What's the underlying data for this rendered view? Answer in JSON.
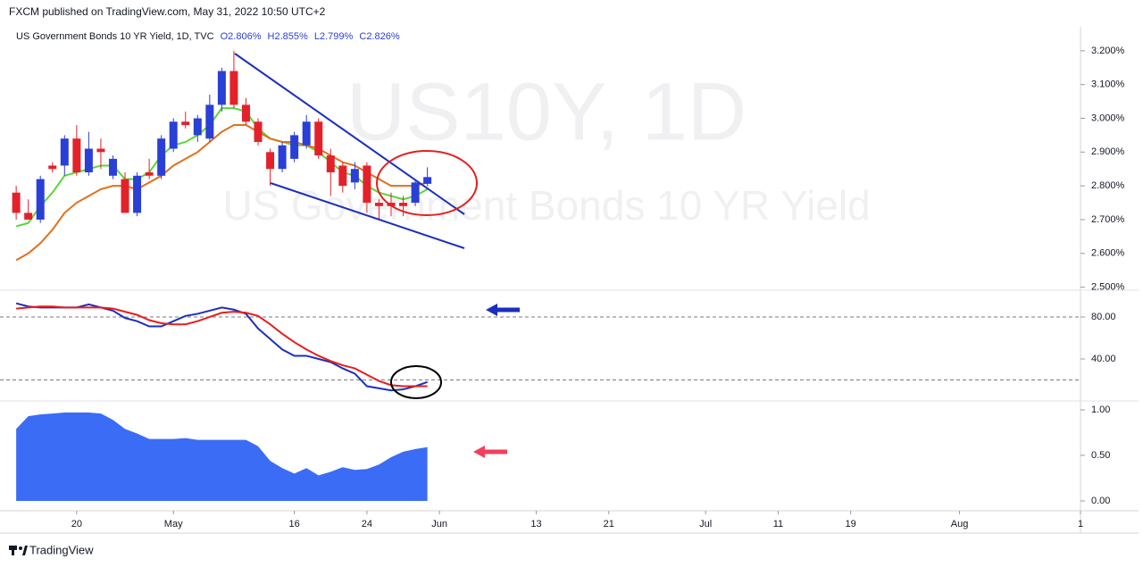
{
  "header": {
    "publisher": "FXCM published on TradingView.com, May 31, 2022 10:50 UTC+2"
  },
  "footer": {
    "brand": "TradingView"
  },
  "chart_data": [
    {
      "type": "candlestick",
      "legend_title": "US Government Bonds 10 YR Yield, 1D, TVC",
      "legend_values": [
        "O2.806%",
        "H2.855%",
        "L2.799%",
        "C2.826%"
      ],
      "watermark": "US10Y, 1D",
      "watermark_subtitle": "US Government Bonds 10 YR Yield",
      "up_color": "#2a3fd6",
      "down_color": "#e4212b",
      "ylim": [
        2.491,
        3.271
      ],
      "yticks": [
        {
          "value": 2.5,
          "label": "2.500%"
        },
        {
          "value": 2.6,
          "label": "2.600%"
        },
        {
          "value": 2.7,
          "label": "2.700%"
        },
        {
          "value": 2.8,
          "label": "2.800%"
        },
        {
          "value": 2.9,
          "label": "2.900%"
        },
        {
          "value": 3.0,
          "label": "3.000%"
        },
        {
          "value": 3.1,
          "label": "3.100%"
        },
        {
          "value": 3.2,
          "label": "3.200%"
        }
      ],
      "open": [
        2.78,
        2.72,
        2.7,
        2.86,
        2.86,
        2.94,
        2.84,
        2.91,
        2.83,
        2.82,
        2.72,
        2.84,
        2.83,
        2.91,
        2.99,
        2.95,
        2.94,
        3.04,
        3.14,
        3.04,
        2.99,
        2.9,
        2.85,
        2.88,
        2.92,
        2.99,
        2.89,
        2.86,
        2.81,
        2.86,
        2.75,
        2.75,
        2.75,
        2.75,
        2.806
      ],
      "high": [
        2.8,
        2.76,
        2.83,
        2.87,
        2.95,
        2.98,
        2.96,
        2.94,
        2.89,
        2.84,
        2.84,
        2.88,
        2.95,
        3.0,
        3.02,
        3.01,
        3.07,
        3.15,
        3.2,
        3.06,
        3.0,
        2.91,
        2.93,
        2.96,
        3.01,
        3.0,
        2.91,
        2.87,
        2.87,
        2.87,
        2.76,
        2.78,
        2.77,
        2.82,
        2.855
      ],
      "low": [
        2.7,
        2.7,
        2.69,
        2.84,
        2.83,
        2.83,
        2.83,
        2.85,
        2.82,
        2.72,
        2.71,
        2.82,
        2.82,
        2.9,
        2.97,
        2.93,
        2.93,
        3.02,
        3.03,
        2.98,
        2.92,
        2.8,
        2.84,
        2.87,
        2.91,
        2.88,
        2.77,
        2.78,
        2.79,
        2.72,
        2.7,
        2.71,
        2.71,
        2.74,
        2.799
      ],
      "close": [
        2.72,
        2.7,
        2.82,
        2.85,
        2.94,
        2.84,
        2.91,
        2.9,
        2.88,
        2.72,
        2.83,
        2.83,
        2.94,
        2.99,
        2.98,
        3.0,
        3.04,
        3.14,
        3.04,
        2.99,
        2.93,
        2.85,
        2.92,
        2.95,
        2.99,
        2.89,
        2.84,
        2.8,
        2.85,
        2.75,
        2.74,
        2.74,
        2.74,
        2.81,
        2.826
      ],
      "series": [
        {
          "color": "#5cd63c",
          "values": [
            2.68,
            2.69,
            2.74,
            2.78,
            2.83,
            2.84,
            2.85,
            2.86,
            2.86,
            2.82,
            2.82,
            2.84,
            2.89,
            2.92,
            2.93,
            2.95,
            2.98,
            3.03,
            3.03,
            3.02,
            2.97,
            2.94,
            2.93,
            2.92,
            2.92,
            2.9,
            2.87,
            2.84,
            2.83,
            2.8,
            2.78,
            2.77,
            2.76,
            2.77,
            2.79
          ]
        },
        {
          "color": "#e0701d",
          "values": [
            2.58,
            2.6,
            2.63,
            2.67,
            2.72,
            2.75,
            2.77,
            2.79,
            2.8,
            2.8,
            2.79,
            2.81,
            2.83,
            2.86,
            2.88,
            2.9,
            2.93,
            2.96,
            2.98,
            2.98,
            2.96,
            2.94,
            2.93,
            2.93,
            2.92,
            2.91,
            2.89,
            2.87,
            2.86,
            2.84,
            2.82,
            2.8,
            2.8,
            2.8,
            2.81
          ]
        }
      ]
    },
    {
      "type": "line",
      "ylim": [
        0,
        105.5
      ],
      "yticks": [
        {
          "value": 40,
          "label": "40.00"
        },
        {
          "value": 80,
          "label": "80.00"
        }
      ],
      "bands": [
        20,
        80
      ],
      "series": [
        {
          "color": "#1b2fbf",
          "values": [
            93,
            90,
            89,
            89,
            89,
            89,
            92,
            89,
            86,
            79,
            76,
            71,
            71,
            76,
            81,
            83,
            86,
            89,
            87,
            83,
            69,
            59,
            49,
            43,
            43,
            40,
            37,
            31,
            26,
            14,
            12,
            10,
            11,
            14,
            18
          ]
        },
        {
          "color": "#e81d1d",
          "values": [
            88,
            89,
            90,
            90,
            89,
            89,
            89,
            89,
            88,
            85,
            82,
            77,
            74,
            73,
            73,
            76,
            80,
            84,
            85,
            84,
            81,
            73,
            64,
            56,
            49,
            43,
            38,
            34,
            31,
            25,
            19,
            15,
            14,
            14,
            14
          ]
        }
      ]
    },
    {
      "type": "area",
      "ylim": [
        -0.108,
        1.098
      ],
      "yticks": [
        {
          "value": 0,
          "label": "0.00"
        },
        {
          "value": 0.5,
          "label": "0.50"
        },
        {
          "value": 1,
          "label": "1.00"
        }
      ],
      "color": "#3b6cf5",
      "values": [
        0.79,
        0.93,
        0.95,
        0.96,
        0.97,
        0.97,
        0.97,
        0.96,
        0.89,
        0.79,
        0.74,
        0.68,
        0.68,
        0.68,
        0.69,
        0.67,
        0.67,
        0.67,
        0.67,
        0.67,
        0.6,
        0.44,
        0.36,
        0.3,
        0.36,
        0.28,
        0.32,
        0.37,
        0.34,
        0.35,
        0.4,
        0.48,
        0.54,
        0.57,
        0.59
      ],
      "xlim": [
        -0.6,
        88
      ],
      "xticks": [
        {
          "value": 5,
          "label": "20"
        },
        {
          "value": 13,
          "label": "May"
        },
        {
          "value": 23,
          "label": "16"
        },
        {
          "value": 29,
          "label": "24"
        },
        {
          "value": 35,
          "label": "Jun"
        },
        {
          "value": 43,
          "label": "13"
        },
        {
          "value": 49,
          "label": "21"
        },
        {
          "value": 57,
          "label": "Jul"
        },
        {
          "value": 63,
          "label": "11"
        },
        {
          "value": 69,
          "label": "19"
        },
        {
          "value": 78,
          "label": "Aug"
        },
        {
          "value": 88,
          "label": "1"
        }
      ]
    }
  ]
}
